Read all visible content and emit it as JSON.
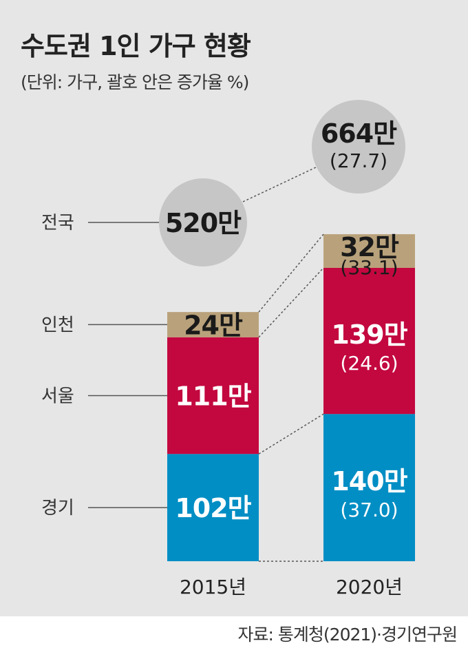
{
  "title": "수도권 1인 가구 현황",
  "subtitle": "(단위: 가구, 괄호 안은 증가율 %)",
  "source": "자료: 통계청(2021)·경기연구원",
  "colors": {
    "background": "#e6e6e6",
    "gyeonggi": "#008ec4",
    "seoul": "#c3083f",
    "incheon": "#b9a27b",
    "national": "#c6c6c6"
  },
  "chart_data": {
    "type": "bar",
    "stacked": true,
    "categories": [
      "2015년",
      "2020년"
    ],
    "series": [
      {
        "name": "경기",
        "values": [
          102,
          140
        ],
        "labels": [
          "102만",
          "140만"
        ],
        "growth": [
          null,
          "(37.0)"
        ]
      },
      {
        "name": "서울",
        "values": [
          111,
          139
        ],
        "labels": [
          "111만",
          "139만"
        ],
        "growth": [
          null,
          "(24.6)"
        ]
      },
      {
        "name": "인천",
        "values": [
          24,
          32
        ],
        "labels": [
          "24만",
          "32만"
        ],
        "growth": [
          null,
          "(33.1)"
        ]
      }
    ],
    "national": {
      "name": "전국",
      "values": [
        520,
        664
      ],
      "labels": [
        "520만",
        "664만"
      ],
      "growth": [
        null,
        "(27.7)"
      ]
    },
    "unit": "만"
  }
}
